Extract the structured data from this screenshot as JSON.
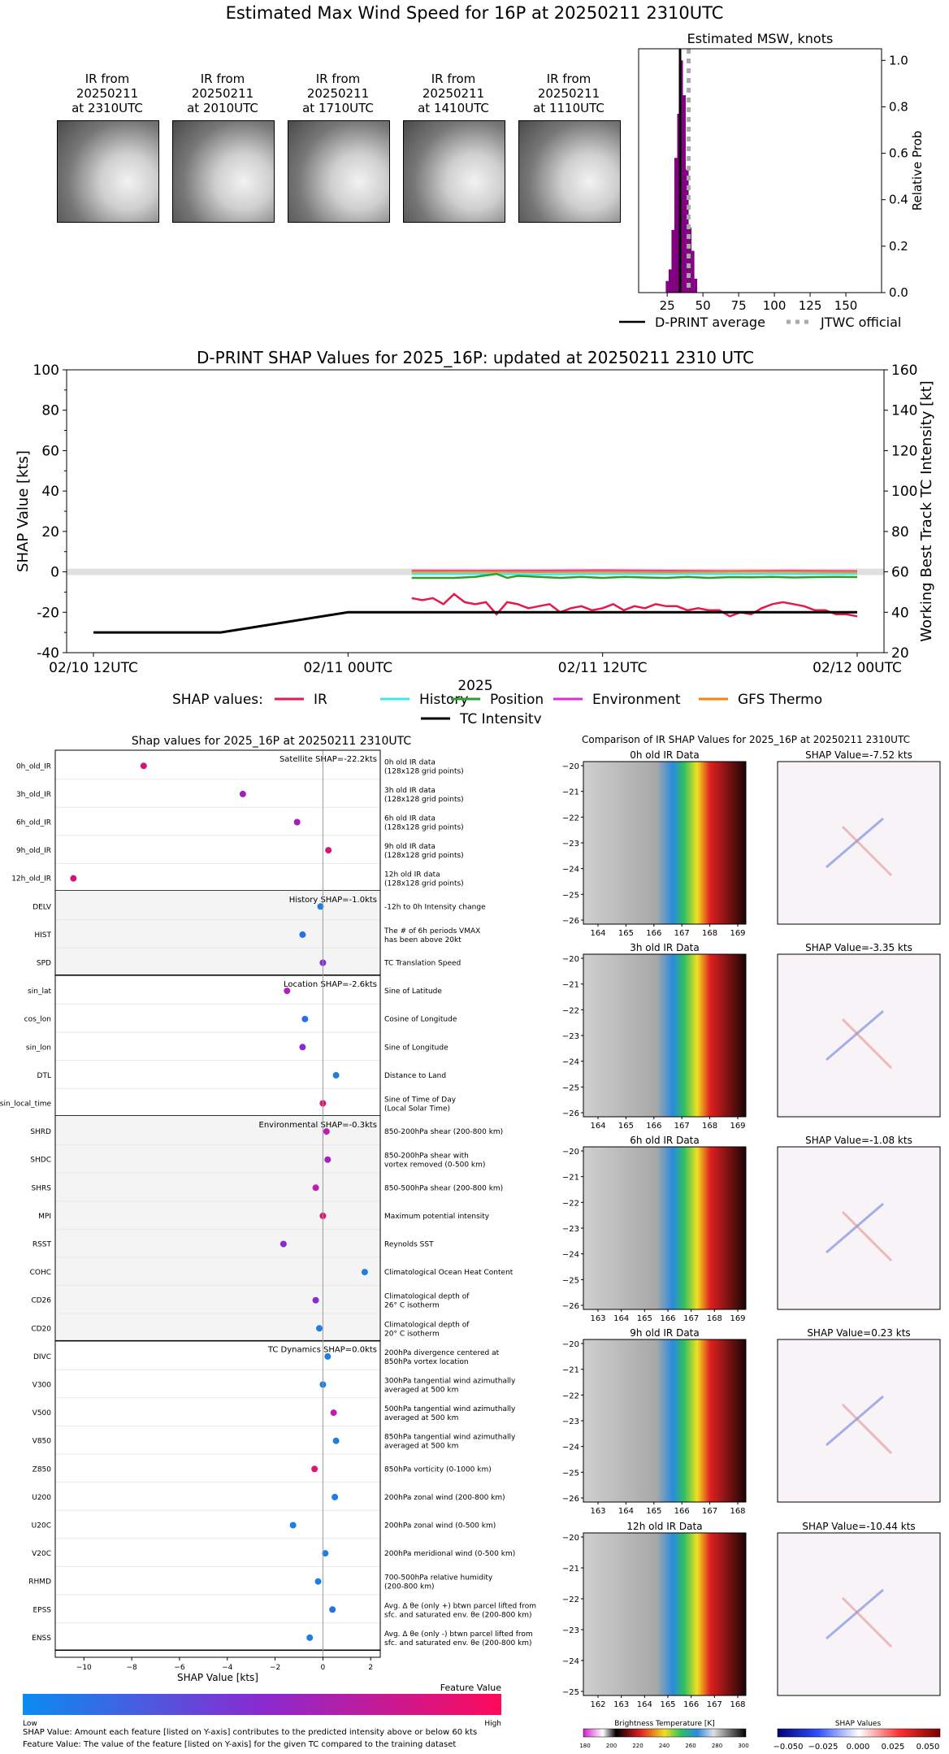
{
  "header": {
    "title": "Estimated Max Wind Speed for 16P at 20250211 2310UTC"
  },
  "ir_thumbnails": [
    {
      "line1": "IR from",
      "line2": "20250211",
      "line3": "at 2310UTC"
    },
    {
      "line1": "IR from",
      "line2": "20250211",
      "line3": "at 2010UTC"
    },
    {
      "line1": "IR from",
      "line2": "20250211",
      "line3": "at 1710UTC"
    },
    {
      "line1": "IR from",
      "line2": "20250211",
      "line3": "at 1410UTC"
    },
    {
      "line1": "IR from",
      "line2": "20250211",
      "line3": "at 1110UTC"
    }
  ],
  "histogram": {
    "title": "Estimated MSW, knots",
    "ylabel": "Relative Prob",
    "legend_avg": "D-PRINT average",
    "legend_jtwc": "JTWC official"
  },
  "shap_ts": {
    "title": "D-PRINT SHAP Values for 2025_16P: updated at 20250211 2310 UTC",
    "ylabel_left": "SHAP Value [kts]",
    "ylabel_right": "Working Best Track TC Intensity [kt]",
    "xlabel": "2025",
    "legend_prefix": "SHAP values:",
    "legend": {
      "ir": "IR",
      "history": "History",
      "position": "Position",
      "environment": "Environment",
      "gfs": "GFS Thermo",
      "intensity": "TC Intensity"
    }
  },
  "shap_bar": {
    "title": "Shap values for 2025_16P at 20250211 2310UTC",
    "xlabel": "SHAP Value [kts]",
    "colorbar_title": "Feature Value",
    "colorbar_low": "Low",
    "colorbar_high": "High"
  },
  "ir_compare": {
    "title": "Comparison of IR SHAP Values for 2025_16P at 20250211 2310UTC",
    "panels": [
      {
        "left": "0h old IR Data",
        "right": "SHAP Value=-7.52 kts"
      },
      {
        "left": "3h old IR Data",
        "right": "SHAP Value=-3.35 kts"
      },
      {
        "left": "6h old IR Data",
        "right": "SHAP Value=-1.08 kts"
      },
      {
        "left": "9h old IR Data",
        "right": "SHAP Value=0.23 kts"
      },
      {
        "left": "12h old IR Data",
        "right": "SHAP Value=-10.44 kts"
      }
    ],
    "bt_label": "Brightness Temperature [K]",
    "sv_label": "SHAP Values"
  },
  "footer": {
    "line1": "SHAP Value: Amount each feature [listed on Y-axis] contributes to the predicted intensity above or below 60 kts",
    "line2": "Feature Value: The value of the feature [listed on Y-axis] for the given TC compared to the training dataset"
  },
  "chart_data": [
    {
      "type": "bar",
      "title": "Estimated MSW, knots",
      "xlabel": "",
      "ylabel": "Relative Prob",
      "xlim": [
        5,
        175
      ],
      "ylim": [
        0,
        1.05
      ],
      "xticks": [
        25,
        50,
        75,
        100,
        125,
        150
      ],
      "yticks": [
        0.0,
        0.2,
        0.4,
        0.6,
        0.8,
        1.0
      ],
      "bins": [
        {
          "x": 25,
          "y": 0.05
        },
        {
          "x": 27,
          "y": 0.1
        },
        {
          "x": 29,
          "y": 0.27
        },
        {
          "x": 31,
          "y": 0.58
        },
        {
          "x": 33,
          "y": 0.77
        },
        {
          "x": 35,
          "y": 1.0
        },
        {
          "x": 37,
          "y": 0.85
        },
        {
          "x": 39,
          "y": 0.53
        },
        {
          "x": 41,
          "y": 0.28
        },
        {
          "x": 43,
          "y": 0.18
        },
        {
          "x": 45,
          "y": 0.06
        }
      ],
      "dprint_average": 34,
      "jtwc_official": 40
    },
    {
      "type": "line",
      "title": "D-PRINT SHAP Values for 2025_16P: updated at 20250211 2310 UTC",
      "xlabel": "2025",
      "ylabel": "SHAP Value [kts]",
      "y2label": "Working Best Track TC Intensity [kt]",
      "x_ticks": [
        "02/10 12UTC",
        "02/11 00UTC",
        "02/11 12UTC",
        "02/12 00UTC"
      ],
      "x_tick_hours": [
        0,
        12,
        24,
        36
      ],
      "ylim": [
        -40,
        100
      ],
      "y2lim": [
        20,
        160
      ],
      "yticks": [
        -40,
        -20,
        0,
        20,
        40,
        60,
        80,
        100
      ],
      "y2ticks": [
        20,
        40,
        60,
        80,
        100,
        120,
        140,
        160
      ],
      "series": [
        {
          "name": "IR",
          "color": "#e6194b",
          "x": [
            15,
            15.5,
            16,
            16.5,
            17,
            17.5,
            18,
            18.5,
            19,
            19.5,
            20,
            20.5,
            21,
            21.5,
            22,
            22.5,
            23,
            23.5,
            24,
            24.5,
            25,
            25.5,
            26,
            26.5,
            27,
            27.5,
            28,
            28.5,
            29,
            29.5,
            30,
            30.5,
            31,
            31.5,
            32,
            32.5,
            33,
            33.5,
            34,
            34.5,
            35,
            35.5,
            36
          ],
          "y": [
            -13,
            -14,
            -13,
            -16,
            -11,
            -15,
            -16,
            -15,
            -21,
            -15,
            -16,
            -18,
            -17,
            -16,
            -20,
            -18,
            -17,
            -19,
            -18,
            -16,
            -19,
            -17,
            -18,
            -16,
            -17,
            -17,
            -19,
            -18,
            -19,
            -19,
            -22,
            -20,
            -21,
            -18,
            -16,
            -15,
            -16,
            -17,
            -19,
            -19,
            -21,
            -21,
            -22
          ]
        },
        {
          "name": "History",
          "color": "#3ee8e8",
          "x": [
            15,
            18,
            21,
            24,
            27,
            30,
            33,
            36
          ],
          "y": [
            -1,
            -1,
            -1.2,
            -1,
            -1,
            -1.1,
            -1,
            -1
          ]
        },
        {
          "name": "Position",
          "color": "#2ca02c",
          "x": [
            15,
            16,
            17,
            18,
            19,
            19.5,
            20,
            21,
            22,
            23,
            24,
            25,
            26,
            27,
            28,
            29,
            30,
            31,
            32,
            33,
            34,
            35,
            36
          ],
          "y": [
            -3,
            -3,
            -3,
            -2.5,
            -1,
            -3,
            -2,
            -2.5,
            -3,
            -2.5,
            -3,
            -2.5,
            -2.8,
            -3,
            -2.5,
            -3,
            -2.6,
            -2.7,
            -2.5,
            -2.8,
            -2.6,
            -2.5,
            -2.6
          ]
        },
        {
          "name": "Environment",
          "color": "#e628d8",
          "x": [
            15,
            18,
            21,
            24,
            27,
            30,
            33,
            36
          ],
          "y": [
            0.6,
            0.5,
            0.6,
            0.7,
            0.5,
            0.4,
            0.5,
            0.4
          ]
        },
        {
          "name": "GFS Thermo",
          "color": "#ff7f0e",
          "x": [
            15,
            18,
            21,
            24,
            27,
            30,
            33,
            36
          ],
          "y": [
            0.1,
            0.1,
            0.0,
            0.1,
            0.0,
            0.1,
            0.1,
            0.0
          ]
        },
        {
          "name": "TC Intensity",
          "color": "#000000",
          "axis": "right",
          "x": [
            0,
            6,
            12,
            36
          ],
          "y": [
            30,
            30,
            40,
            40
          ]
        }
      ]
    },
    {
      "type": "scatter",
      "title": "Shap values for 2025_16P at 20250211 2310UTC",
      "xlabel": "SHAP Value [kts]",
      "xlim": [
        -11.2,
        2.4
      ],
      "xticks": [
        -10,
        -8,
        -6,
        -4,
        -2,
        0,
        2
      ],
      "groups": [
        {
          "label": "Satellite SHAP=-22.2kts",
          "shaded": false,
          "rows": [
            {
              "name": "0h_old_IR",
              "desc1": "0h old IR data",
              "desc2": "(128x128 grid points)",
              "shap": -7.5,
              "color": "#d4147a"
            },
            {
              "name": "3h_old_IR",
              "desc1": "3h old IR data",
              "desc2": "(128x128 grid points)",
              "shap": -3.35,
              "color": "#a020b8"
            },
            {
              "name": "6h_old_IR",
              "desc1": "6h old IR data",
              "desc2": "(128x128 grid points)",
              "shap": -1.08,
              "color": "#a020b8"
            },
            {
              "name": "9h_old_IR",
              "desc1": "9h old IR data",
              "desc2": "(128x128 grid points)",
              "shap": 0.23,
              "color": "#d4147a"
            },
            {
              "name": "12h_old_IR",
              "desc1": "12h old IR data",
              "desc2": "(128x128 grid points)",
              "shap": -10.44,
              "color": "#d4147a"
            }
          ]
        },
        {
          "label": "History SHAP=-1.0kts",
          "shaded": true,
          "rows": [
            {
              "name": "DELV",
              "desc1": "-12h to 0h Intensity change",
              "desc2": "",
              "shap": -0.1,
              "color": "#1e7fe0"
            },
            {
              "name": "HIST",
              "desc1": "The # of 6h periods VMAX",
              "desc2": "has been above 20kt",
              "shap": -0.85,
              "color": "#2a6fe6"
            },
            {
              "name": "SPD",
              "desc1": "TC Translation Speed",
              "desc2": "",
              "shap": 0.0,
              "color": "#8a2ad0"
            }
          ]
        },
        {
          "label": "Location SHAP=-2.6kts",
          "shaded": false,
          "rows": [
            {
              "name": "sin_lat",
              "desc1": "Sine of Latitude",
              "desc2": "",
              "shap": -1.5,
              "color": "#b41ec0"
            },
            {
              "name": "cos_lon",
              "desc1": "Cosine of Longitude",
              "desc2": "",
              "shap": -0.75,
              "color": "#2a6fe6"
            },
            {
              "name": "sin_lon",
              "desc1": "Sine of Longitude",
              "desc2": "",
              "shap": -0.85,
              "color": "#8a2ad0"
            },
            {
              "name": "DTL",
              "desc1": "Distance to Land",
              "desc2": "",
              "shap": 0.55,
              "color": "#1e7fe0"
            },
            {
              "name": "sin_local_time",
              "desc1": "Sine of Time of Day",
              "desc2": "(Local Solar Time)",
              "shap": 0.0,
              "color": "#e0146e"
            }
          ]
        },
        {
          "label": "Environmental SHAP=-0.3kts",
          "shaded": true,
          "rows": [
            {
              "name": "SHRD",
              "desc1": "850-200hPa shear (200-800 km)",
              "desc2": "",
              "shap": 0.15,
              "color": "#c01cb0"
            },
            {
              "name": "SHDC",
              "desc1": "850-200hPa shear with",
              "desc2": "vortex removed (0-500 km)",
              "shap": 0.2,
              "color": "#a020b8"
            },
            {
              "name": "SHRS",
              "desc1": "850-500hPa shear (200-800 km)",
              "desc2": "",
              "shap": -0.3,
              "color": "#c01cb0"
            },
            {
              "name": "MPI",
              "desc1": "Maximum potential intensity",
              "desc2": "",
              "shap": 0.0,
              "color": "#e0146e"
            },
            {
              "name": "RSST",
              "desc1": "Reynolds SST",
              "desc2": "",
              "shap": -1.65,
              "color": "#8a2ad0"
            },
            {
              "name": "COHC",
              "desc1": "Climatological Ocean Heat Content",
              "desc2": "",
              "shap": 1.75,
              "color": "#1e7fe0"
            },
            {
              "name": "CD26",
              "desc1": "Climatological depth of",
              "desc2": "26° C isotherm",
              "shap": -0.3,
              "color": "#8a2ad0"
            },
            {
              "name": "CD20",
              "desc1": "Climatological depth of",
              "desc2": "20° C isotherm",
              "shap": -0.15,
              "color": "#1e7fe0"
            }
          ]
        },
        {
          "label": "TC Dynamics SHAP=0.0kts",
          "shaded": false,
          "rows": [
            {
              "name": "DIVC",
              "desc1": "200hPa divergence centered at",
              "desc2": "850hPa vortex location",
              "shap": 0.2,
              "color": "#1e7fe0"
            },
            {
              "name": "V300",
              "desc1": "300hPa tangential wind azimuthally",
              "desc2": "averaged at 500 km",
              "shap": 0.0,
              "color": "#1e7fe0"
            },
            {
              "name": "V500",
              "desc1": "500hPa tangential wind azimuthally",
              "desc2": "averaged at 500 km",
              "shap": 0.45,
              "color": "#c01cb0"
            },
            {
              "name": "V850",
              "desc1": "850hPa tangential wind azimuthally",
              "desc2": "averaged at 500 km",
              "shap": 0.55,
              "color": "#1e7fe0"
            },
            {
              "name": "Z850",
              "desc1": "850hPa vorticity (0-1000 km)",
              "desc2": "",
              "shap": -0.35,
              "color": "#e0146e"
            },
            {
              "name": "U200",
              "desc1": "200hPa zonal wind (200-800 km)",
              "desc2": "",
              "shap": 0.5,
              "color": "#1e7fe0"
            },
            {
              "name": "U20C",
              "desc1": "200hPa zonal wind (0-500 km)",
              "desc2": "",
              "shap": -1.25,
              "color": "#1e7fe0"
            },
            {
              "name": "V20C",
              "desc1": "200hPa meridional wind (0-500 km)",
              "desc2": "",
              "shap": 0.1,
              "color": "#1e7fe0"
            },
            {
              "name": "RHMD",
              "desc1": "700-500hPa relative humidity",
              "desc2": "(200-800 km)",
              "shap": -0.2,
              "color": "#1e7fe0"
            },
            {
              "name": "EPSS",
              "desc1": "Avg. Δ θe (only +) btwn parcel lifted from",
              "desc2": "sfc. and saturated env. θe (200-800 km)",
              "shap": 0.4,
              "color": "#2a6fe6"
            },
            {
              "name": "ENSS",
              "desc1": "Avg. Δ θe (only -) btwn parcel lifted from",
              "desc2": "sfc. and saturated env. θe (200-800 km)",
              "shap": -0.55,
              "color": "#1e7fe0"
            }
          ]
        }
      ]
    },
    {
      "type": "heatmap",
      "title": "Comparison of IR SHAP Values for 2025_16P at 20250211 2310UTC",
      "panels": [
        {
          "label": "0h old IR Data",
          "xticks": [
            164,
            165,
            166,
            167,
            168,
            169
          ],
          "yticks": [
            -20,
            -21,
            -22,
            -23,
            -24,
            -25,
            -26
          ],
          "shap_value": -7.52
        },
        {
          "label": "3h old IR Data",
          "xticks": [
            164,
            165,
            166,
            167,
            168,
            169
          ],
          "yticks": [
            -20,
            -21,
            -22,
            -23,
            -24,
            -25,
            -26
          ],
          "shap_value": -3.35
        },
        {
          "label": "6h old IR Data",
          "xticks": [
            163,
            164,
            165,
            166,
            167,
            168,
            169
          ],
          "yticks": [
            -20,
            -21,
            -22,
            -23,
            -24,
            -25,
            -26
          ],
          "shap_value": -1.08
        },
        {
          "label": "9h old IR Data",
          "xticks": [
            163,
            164,
            165,
            166,
            167,
            168
          ],
          "yticks": [
            -20,
            -21,
            -22,
            -23,
            -24,
            -25,
            -26
          ],
          "shap_value": 0.23
        },
        {
          "label": "12h old IR Data",
          "xticks": [
            162,
            163,
            164,
            165,
            166,
            167,
            168
          ],
          "yticks": [
            -20,
            -21,
            -22,
            -23,
            -24,
            -25
          ],
          "shap_value": -10.44
        }
      ],
      "bt_ticks": [
        180,
        200,
        220,
        240,
        260,
        280,
        300
      ],
      "shap_ticks": [
        "−0.050",
        "−0.025",
        "0.000",
        "0.025",
        "0.050"
      ]
    }
  ]
}
